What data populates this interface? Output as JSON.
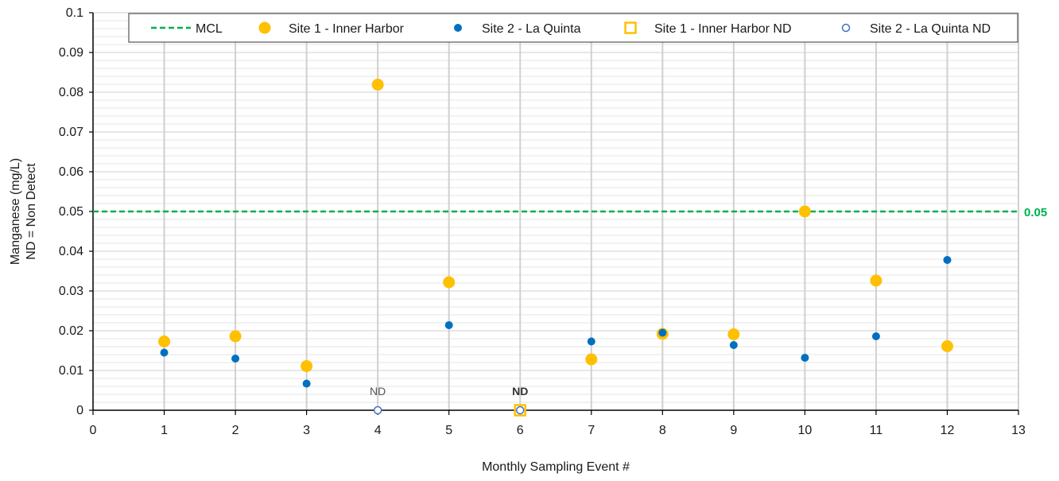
{
  "chart_data": {
    "type": "scatter",
    "xlabel": "Monthly Sampling Event #",
    "ylabel": [
      "Manganese (mg/L)",
      "ND = Non Detect"
    ],
    "xlim": [
      0,
      13
    ],
    "ylim": [
      0,
      0.1
    ],
    "x_ticks": [
      0,
      1,
      2,
      3,
      4,
      5,
      6,
      7,
      8,
      9,
      10,
      11,
      12,
      13
    ],
    "x_tick_labels": [
      "0",
      "1",
      "2",
      "3",
      "4",
      "5",
      "6",
      "7",
      "8",
      "9",
      "10",
      "11",
      "12",
      "13"
    ],
    "y_ticks": [
      0,
      0.01,
      0.02,
      0.03,
      0.04,
      0.05,
      0.06,
      0.07,
      0.08,
      0.09,
      0.1
    ],
    "y_tick_labels": [
      "0",
      "0.01",
      "0.02",
      "0.03",
      "0.04",
      "0.05",
      "0.06",
      "0.07",
      "0.08",
      "0.09",
      "0.1"
    ],
    "grid": {
      "major": true,
      "minor_horizontal": true
    },
    "legend_position": "top",
    "reference_line": {
      "name": "MCL",
      "value": 0.05,
      "label": "0.05",
      "color": "#00B050",
      "style": "dashed"
    },
    "series": [
      {
        "name": "Site 1 - Inner Harbor",
        "marker": "circle-filled-large",
        "color": "#FFC000",
        "points": [
          [
            1,
            0.0173
          ],
          [
            2,
            0.0186
          ],
          [
            3,
            0.0111
          ],
          [
            4,
            0.0819
          ],
          [
            5,
            0.0322
          ],
          [
            7,
            0.0128
          ],
          [
            8,
            0.0192
          ],
          [
            9,
            0.0191
          ],
          [
            10,
            0.05
          ],
          [
            11,
            0.0326
          ],
          [
            12,
            0.0161
          ]
        ]
      },
      {
        "name": "Site 2 - La Quinta",
        "marker": "circle-filled-small",
        "color": "#0070C0",
        "points": [
          [
            1,
            0.0145
          ],
          [
            2,
            0.013
          ],
          [
            3,
            0.0067
          ],
          [
            5,
            0.0214
          ],
          [
            7,
            0.0173
          ],
          [
            8,
            0.0195
          ],
          [
            9,
            0.0164
          ],
          [
            10,
            0.0132
          ],
          [
            11,
            0.0186
          ],
          [
            12,
            0.0378
          ]
        ]
      },
      {
        "name": "Site 1 - Inner Harbor ND",
        "marker": "square-open",
        "color": "#FFC000",
        "points": [
          [
            6,
            0
          ]
        ]
      },
      {
        "name": "Site 2 - La Quinta ND",
        "marker": "circle-open",
        "color": "#4472C4",
        "points": [
          [
            4,
            0
          ],
          [
            6,
            0
          ]
        ]
      }
    ],
    "annotations": [
      {
        "text": "ND",
        "x": 4,
        "y": 0,
        "bold": false
      },
      {
        "text": "ND",
        "x": 6,
        "y": 0,
        "bold": true
      }
    ]
  }
}
